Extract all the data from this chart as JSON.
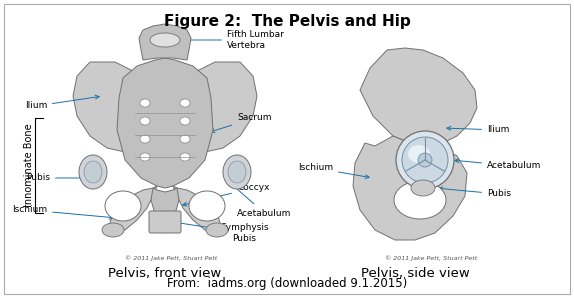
{
  "title": "Figure 2:  The Pelvis and Hip",
  "title_fontsize": 11,
  "title_fontweight": "bold",
  "caption_left": "Pelvis, front view",
  "caption_right": "Pelvis, side view",
  "caption_fontsize": 9.5,
  "footer": "From:  iadms.org (downloaded 9.1.2015)",
  "footer_fontsize": 8.5,
  "bg_color": "#ffffff",
  "border_color": "#aaaaaa",
  "arrow_color": "#1a6fa8",
  "label_fontsize": 6.5,
  "copyright_left": "© 2011 Jake Pett, Stuart Pett",
  "copyright_right": "© 2011 Jake Pett, Stuart Pett",
  "copyright_fontsize": 4.5,
  "side_label": "Innominate Bone",
  "side_label_fontsize": 7
}
